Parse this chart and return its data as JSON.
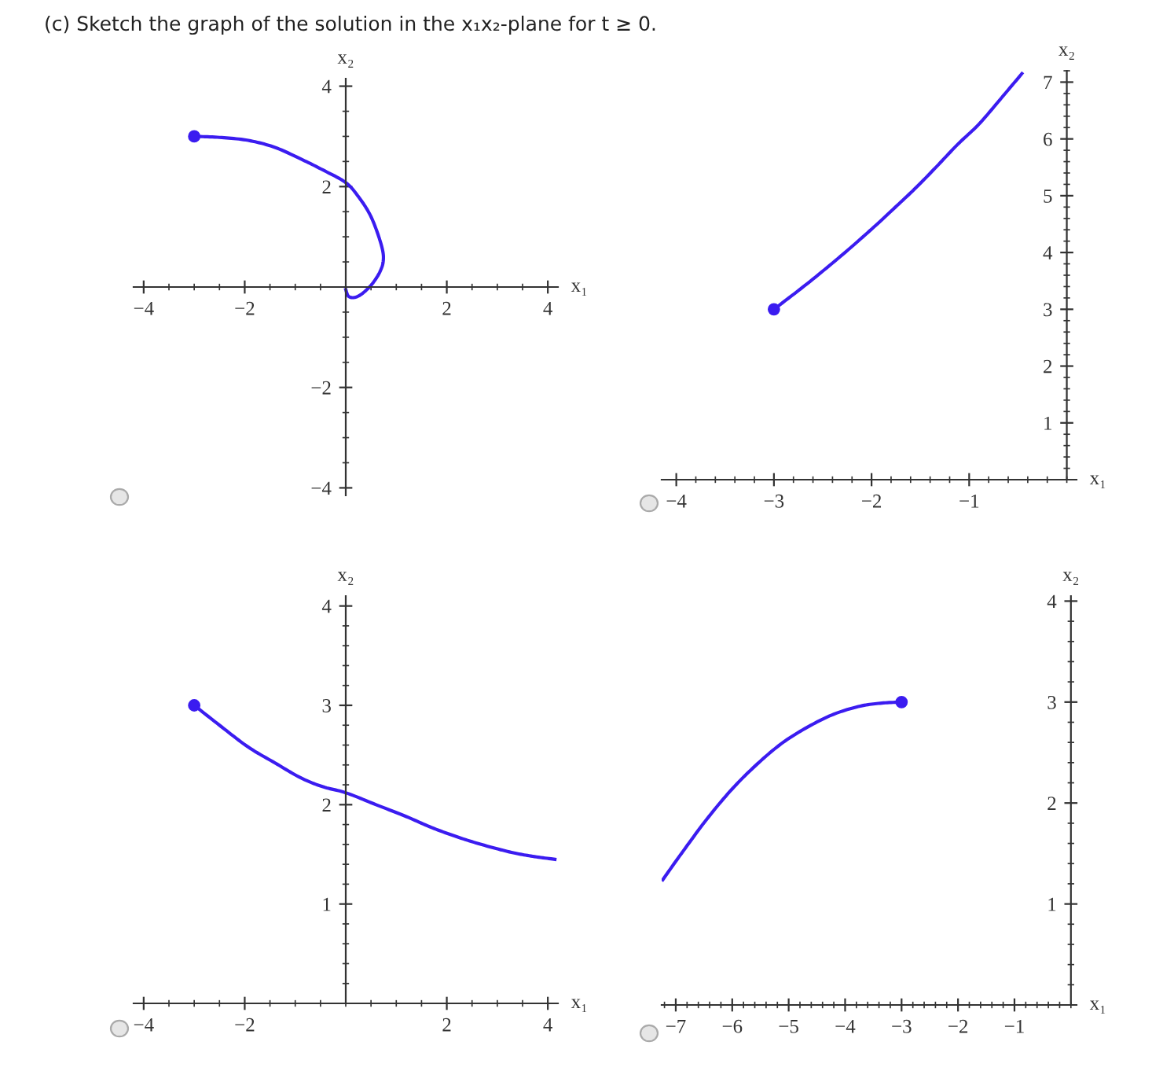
{
  "chart_data": [
    {
      "type": "line",
      "title": "(c) Sketch the graph of the solution in the x₁x₂-plane for t ≥ 0.",
      "xlabel": "x₁",
      "ylabel": "x₂",
      "xlim": [
        -4.2,
        4.2
      ],
      "ylim": [
        -4.15,
        4.15
      ],
      "xticks": [
        {
          "value": -4,
          "label": "−4"
        },
        {
          "value": -2,
          "label": "−2"
        },
        2,
        4
      ],
      "yticks": [
        {
          "value": -4,
          "label": "−4"
        },
        {
          "value": -2,
          "label": "−2"
        },
        2,
        4
      ],
      "grid": false,
      "series": [
        {
          "type": "line",
          "color": "#3b1cf0",
          "x": [
            -3,
            -2.5,
            -1.93,
            -1.4,
            -0.89,
            -0.45,
            0,
            0.25,
            0.47,
            0.62,
            0.73,
            0.74,
            0.68,
            0.58,
            0.47,
            0.3,
            0.16,
            0.05,
            0
          ],
          "values": [
            3,
            2.98,
            2.92,
            2.78,
            2.55,
            2.33,
            2.08,
            1.8,
            1.46,
            1.1,
            0.73,
            0.5,
            0.31,
            0.14,
            0,
            -0.15,
            -0.21,
            -0.18,
            -0.05
          ]
        },
        {
          "type": "scatter",
          "color": "#3b1cf0",
          "marker": "circle",
          "x": [
            -3
          ],
          "values": [
            3
          ]
        }
      ]
    },
    {
      "type": "line",
      "xlabel": "x₁",
      "ylabel": "x₂",
      "xlim": [
        -4.15,
        0.1
      ],
      "ylim": [
        0,
        7.2
      ],
      "xticks": [
        {
          "value": -4,
          "label": "−4"
        },
        {
          "value": -3,
          "label": "−3"
        },
        {
          "value": -2,
          "label": "−2"
        },
        {
          "value": -1,
          "label": "−1"
        }
      ],
      "yticks": [
        1,
        2,
        3,
        4,
        5,
        6,
        7
      ],
      "grid": false,
      "series": [
        {
          "type": "line",
          "color": "#3b1cf0",
          "x": [
            -3,
            -2.66,
            -2.32,
            -2.02,
            -1.78,
            -1.54,
            -1.33,
            -1.12,
            -0.9,
            -0.69,
            -0.46
          ],
          "values": [
            3,
            3.45,
            3.93,
            4.38,
            4.76,
            5.15,
            5.52,
            5.9,
            6.26,
            6.68,
            7.15
          ]
        },
        {
          "type": "scatter",
          "color": "#3b1cf0",
          "marker": "circle",
          "x": [
            -3
          ],
          "values": [
            3
          ]
        }
      ]
    },
    {
      "type": "line",
      "xlabel": "x₁",
      "ylabel": "x₂",
      "xlim": [
        -4.2,
        4.2
      ],
      "ylim": [
        0,
        4.1
      ],
      "xticks": [
        {
          "value": -4,
          "label": "−4"
        },
        {
          "value": -2,
          "label": "−2"
        },
        2,
        4
      ],
      "yticks": [
        1,
        2,
        3,
        4
      ],
      "grid": false,
      "series": [
        {
          "type": "line",
          "color": "#3b1cf0",
          "x": [
            -3,
            -2.5,
            -1.93,
            -1.4,
            -0.89,
            -0.45,
            0,
            0.6,
            1.2,
            1.7,
            2.24,
            2.75,
            3.28,
            3.7,
            4.14
          ],
          "values": [
            3,
            2.8,
            2.58,
            2.42,
            2.27,
            2.18,
            2.12,
            2.0,
            1.88,
            1.77,
            1.67,
            1.59,
            1.52,
            1.48,
            1.45
          ]
        },
        {
          "type": "scatter",
          "color": "#3b1cf0",
          "marker": "circle",
          "x": [
            -3
          ],
          "values": [
            3
          ]
        }
      ]
    },
    {
      "type": "line",
      "xlabel": "x₁",
      "ylabel": "x₂",
      "xlim": [
        -7.25,
        0.1
      ],
      "ylim": [
        0,
        4.05
      ],
      "xticks": [
        {
          "value": -7,
          "label": "−7"
        },
        {
          "value": -6,
          "label": "−6"
        },
        {
          "value": -5,
          "label": "−5"
        },
        {
          "value": -4,
          "label": "−4"
        },
        {
          "value": -3,
          "label": "−3"
        },
        {
          "value": -2,
          "label": "−2"
        },
        {
          "value": -1,
          "label": "−1"
        }
      ],
      "yticks": [
        1,
        2,
        3,
        4
      ],
      "grid": false,
      "series": [
        {
          "type": "line",
          "color": "#3b1cf0",
          "x": [
            -7.23,
            -6.9,
            -6.45,
            -6.0,
            -5.55,
            -5.1,
            -4.64,
            -4.2,
            -3.73,
            -3.35,
            -3
          ],
          "values": [
            1.24,
            1.5,
            1.84,
            2.14,
            2.39,
            2.6,
            2.76,
            2.88,
            2.96,
            2.99,
            3
          ]
        },
        {
          "type": "scatter",
          "color": "#3b1cf0",
          "marker": "circle",
          "x": [
            -3
          ],
          "values": [
            3
          ]
        }
      ]
    }
  ]
}
